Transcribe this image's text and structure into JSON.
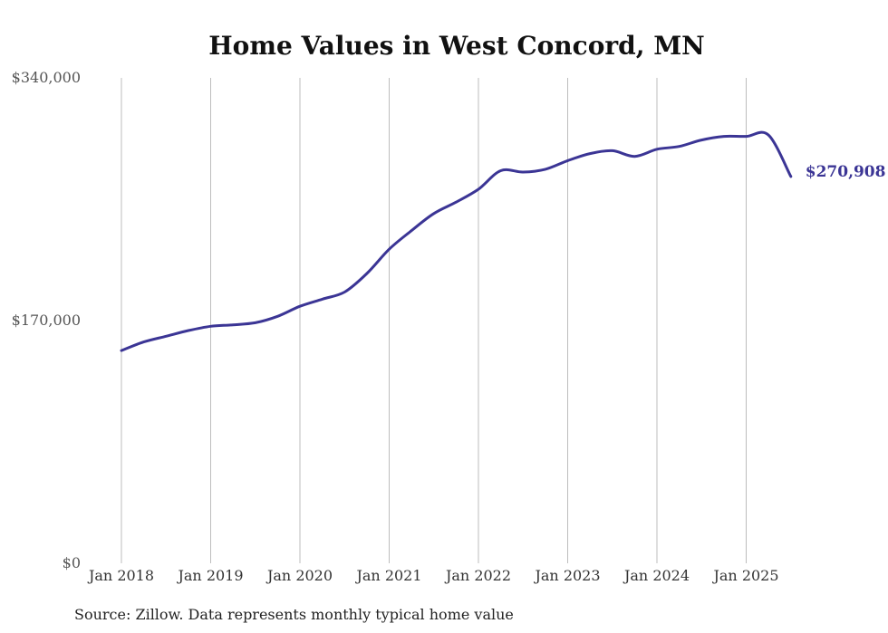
{
  "chart_data": {
    "type": "line",
    "title": "Home Values in West Concord, MN",
    "xlabel": "",
    "ylabel": "",
    "x_tick_labels": [
      "Jan 2018",
      "Jan 2019",
      "Jan 2020",
      "Jan 2021",
      "Jan 2022",
      "Jan 2023",
      "Jan 2024",
      "Jan 2025"
    ],
    "y_tick_labels": [
      "$0",
      "$170,000",
      "$340,000"
    ],
    "y_ticks": [
      0,
      170000,
      340000
    ],
    "ylim": [
      0,
      340000
    ],
    "xlim": [
      "2018-01",
      "2025-07"
    ],
    "grid": "vertical",
    "legend": "none",
    "line_color": "#3b3595",
    "series": [
      {
        "x": [
          "2018-01",
          "2018-04",
          "2018-07",
          "2018-10",
          "2019-01",
          "2019-04",
          "2019-07",
          "2019-10",
          "2020-01",
          "2020-04",
          "2020-07",
          "2020-10",
          "2021-01",
          "2021-04",
          "2021-07",
          "2021-10",
          "2022-01",
          "2022-04",
          "2022-07",
          "2022-10",
          "2023-01",
          "2023-04",
          "2023-07",
          "2023-10",
          "2024-01",
          "2024-04",
          "2024-07",
          "2024-10",
          "2025-01",
          "2025-04",
          "2025-07"
        ],
        "values": [
          149000,
          155000,
          159000,
          163000,
          166000,
          167000,
          168500,
          173000,
          180000,
          185000,
          190000,
          203000,
          220000,
          233000,
          245000,
          253000,
          262000,
          275000,
          274000,
          276000,
          282000,
          287000,
          289000,
          285000,
          290000,
          292000,
          296500,
          299000,
          299000,
          300000,
          270908
        ]
      }
    ],
    "end_label": "$270,908"
  },
  "source_note": "Source: Zillow. Data represents monthly typical home value"
}
